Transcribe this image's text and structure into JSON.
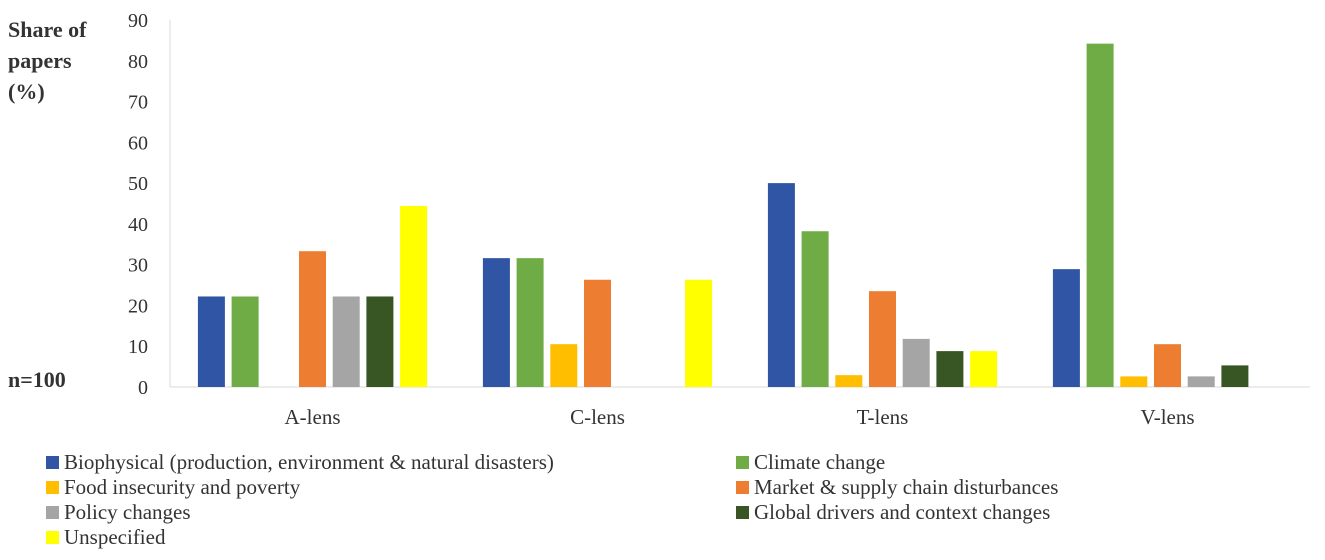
{
  "chart_data": {
    "type": "bar",
    "ylabel": "Share of papers (%)",
    "note": "n=100",
    "ylim": [
      0,
      90
    ],
    "yticks": [
      0,
      10,
      20,
      30,
      40,
      50,
      60,
      70,
      80,
      90
    ],
    "grid": false,
    "legend_position": "bottom",
    "categories": [
      "A-lens",
      "C-lens",
      "T-lens",
      "V-lens"
    ],
    "series": [
      {
        "name": "Biophysical (production, environment & natural disasters)",
        "color": "#2f55a4",
        "values": [
          22.2,
          31.6,
          50.0,
          28.9
        ]
      },
      {
        "name": "Climate change",
        "color": "#6fac46",
        "values": [
          22.2,
          31.6,
          38.2,
          84.2
        ]
      },
      {
        "name": "Food insecurity and poverty",
        "color": "#ffbe00",
        "values": [
          0,
          10.5,
          2.9,
          2.6
        ]
      },
      {
        "name": "Market & supply chain disturbances",
        "color": "#ed7d31",
        "values": [
          33.3,
          26.3,
          23.5,
          10.5
        ]
      },
      {
        "name": "Policy changes",
        "color": "#a5a5a5",
        "values": [
          22.2,
          0,
          11.8,
          2.6
        ]
      },
      {
        "name": "Global drivers and context changes",
        "color": "#375623",
        "values": [
          22.2,
          0,
          8.8,
          5.3
        ]
      },
      {
        "name": "Unspecified",
        "color": "#ffff00",
        "values": [
          44.4,
          26.3,
          8.8,
          0
        ]
      }
    ]
  }
}
